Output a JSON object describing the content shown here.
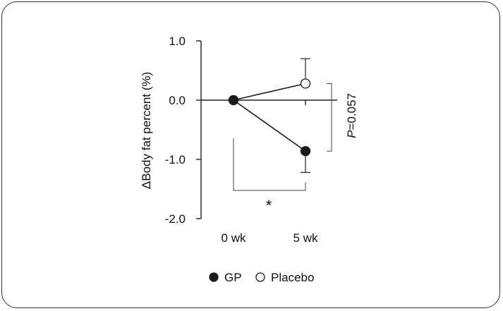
{
  "chart_data": {
    "type": "line",
    "ylabel": "ΔBody fat percent (%)",
    "categories": [
      "0 wk",
      "5 wk"
    ],
    "ylim": [
      -2.0,
      1.0
    ],
    "yticks": [
      1.0,
      0.0,
      -1.0,
      -2.0
    ],
    "ytick_labels": [
      "1.0",
      "0.0",
      "-1.0",
      "-2.0"
    ],
    "grid": false,
    "legend_position": "bottom",
    "series": [
      {
        "name": "GP",
        "values": [
          0.0,
          -0.86
        ],
        "error_plus": [
          0,
          0
        ],
        "error_minus": [
          0,
          0.36
        ],
        "marker": "filled-circle",
        "color": "#1a1a1a"
      },
      {
        "name": "Placebo",
        "values": [
          0.0,
          0.28
        ],
        "error_plus": [
          0,
          0.42
        ],
        "error_minus": [
          0,
          0
        ],
        "marker": "open-circle",
        "color": "#1a1a1a"
      }
    ],
    "annotations": {
      "within_group_significance": "*",
      "between_group_p_prefix": "P",
      "between_group_p_value": "=0.057"
    }
  }
}
